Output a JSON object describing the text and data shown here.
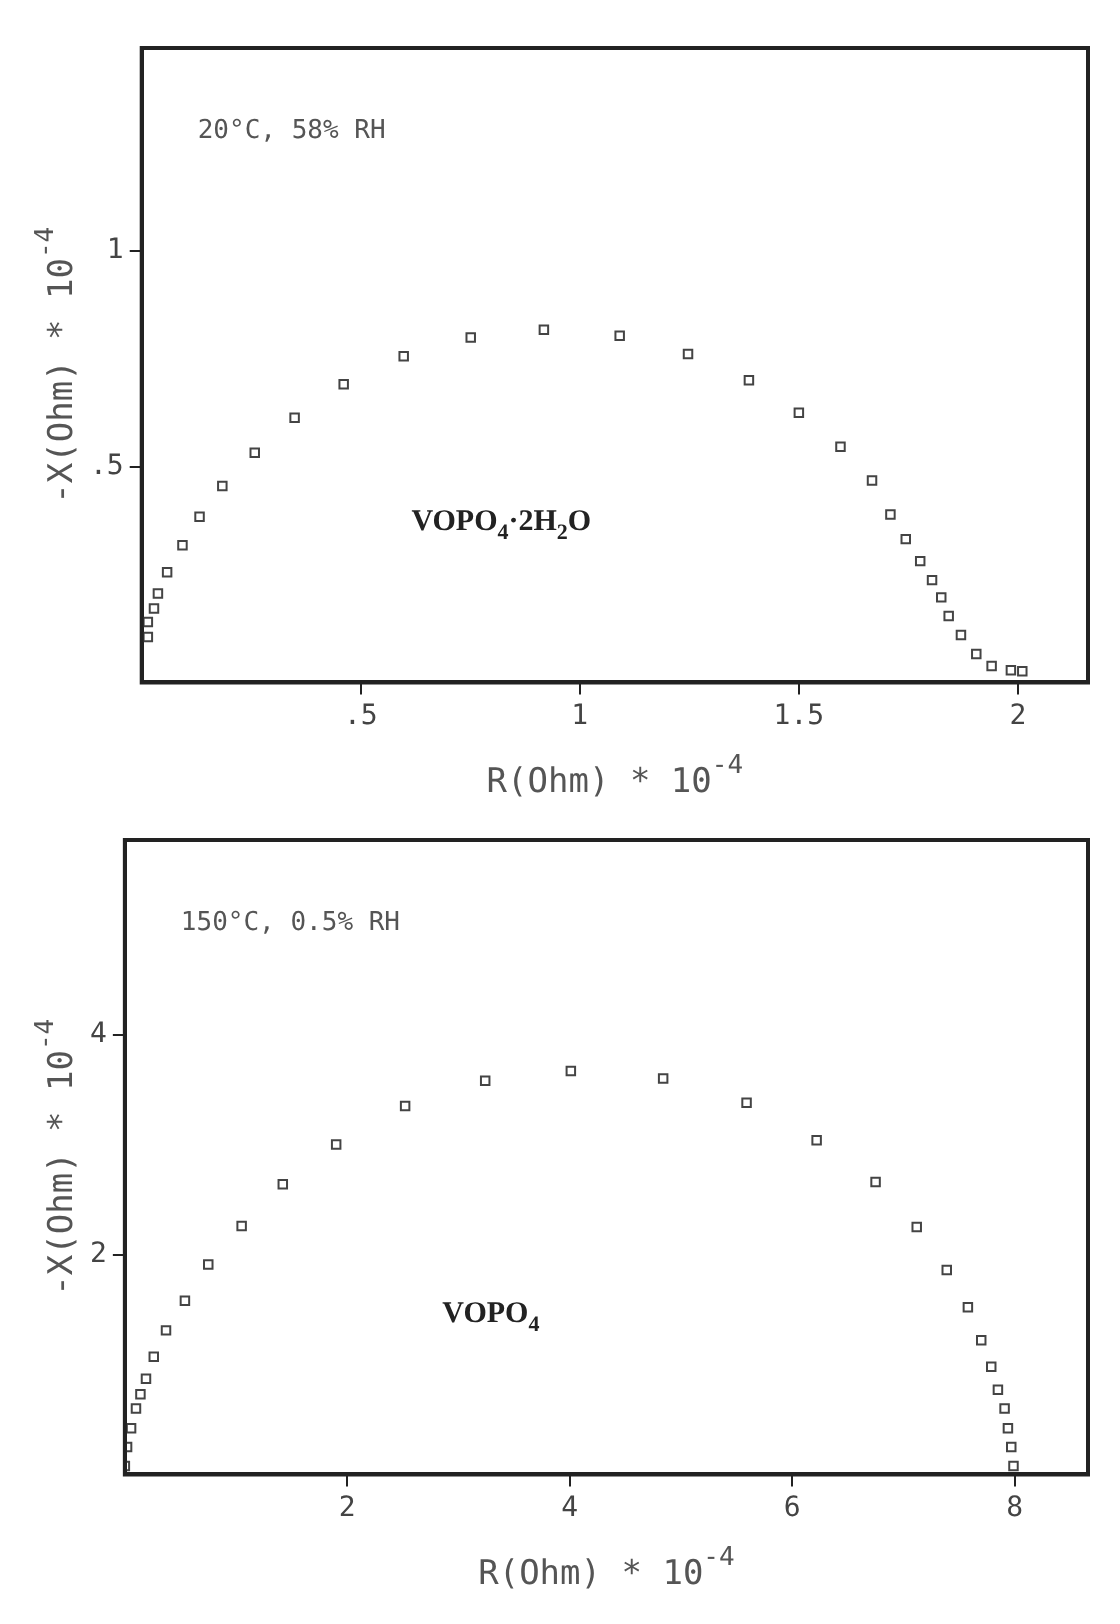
{
  "chart_data": [
    {
      "type": "scatter",
      "xlabel": "R(Ohm) * 10$^{-4}$",
      "ylabel": "-X(Ohm) * 10$^{-4}$",
      "annotations": [
        "20°C, 58% RH",
        "VOPO$_{4}$·2H$_{2}$O"
      ],
      "marker": "square",
      "xlim": [
        0,
        2.16
      ],
      "ylim": [
        0,
        1.47
      ],
      "xticks": [
        {
          "value": 0.5,
          "label": ".5"
        },
        1,
        1.5,
        2
      ],
      "yticks": [
        {
          "value": 0.5,
          "label": ".5"
        },
        1
      ],
      "series": [
        {
          "color": "#444444",
          "x": [
            0.014,
            0.014,
            0.028,
            0.037,
            0.058,
            0.093,
            0.132,
            0.184,
            0.258,
            0.349,
            0.461,
            0.598,
            0.751,
            0.918,
            1.091,
            1.247,
            1.386,
            1.5,
            1.595,
            1.667,
            1.709,
            1.744,
            1.777,
            1.804,
            1.825,
            1.842,
            1.87,
            1.905,
            1.94,
            1.984,
            2.01
          ],
          "values": [
            0.105,
            0.14,
            0.171,
            0.206,
            0.255,
            0.318,
            0.384,
            0.455,
            0.532,
            0.613,
            0.691,
            0.756,
            0.799,
            0.817,
            0.803,
            0.761,
            0.7,
            0.625,
            0.546,
            0.468,
            0.389,
            0.332,
            0.281,
            0.237,
            0.197,
            0.154,
            0.11,
            0.066,
            0.038,
            0.028,
            0.026
          ]
        }
      ]
    },
    {
      "type": "scatter",
      "xlabel": "R(Ohm) * 10$^{-4}$",
      "ylabel": "-X(Ohm) * 10$^{-4}$",
      "annotations": [
        "150°C, 0.5% RH",
        "VOPO$_{4}$"
      ],
      "marker": "square",
      "xlim": [
        0,
        8.66
      ],
      "ylim": [
        0,
        5.77
      ],
      "xticks": [
        2,
        4,
        6,
        8
      ],
      "yticks": [
        2,
        4
      ],
      "series": [
        {
          "color": "#444444",
          "x": [
            0,
            0.02,
            0.056,
            0.1,
            0.14,
            0.19,
            0.26,
            0.37,
            0.54,
            0.75,
            1.05,
            1.42,
            1.9,
            2.52,
            3.24,
            4.01,
            4.84,
            5.59,
            6.22,
            6.75,
            7.12,
            7.39,
            7.58,
            7.7,
            7.79,
            7.85,
            7.91,
            7.94,
            7.97,
            7.99
          ],
          "values": [
            0.076,
            0.25,
            0.42,
            0.6,
            0.73,
            0.87,
            1.07,
            1.31,
            1.58,
            1.91,
            2.26,
            2.64,
            3.0,
            3.35,
            3.58,
            3.67,
            3.6,
            3.38,
            3.04,
            2.66,
            2.25,
            1.86,
            1.52,
            1.22,
            0.98,
            0.77,
            0.6,
            0.42,
            0.25,
            0.076
          ]
        }
      ]
    }
  ]
}
